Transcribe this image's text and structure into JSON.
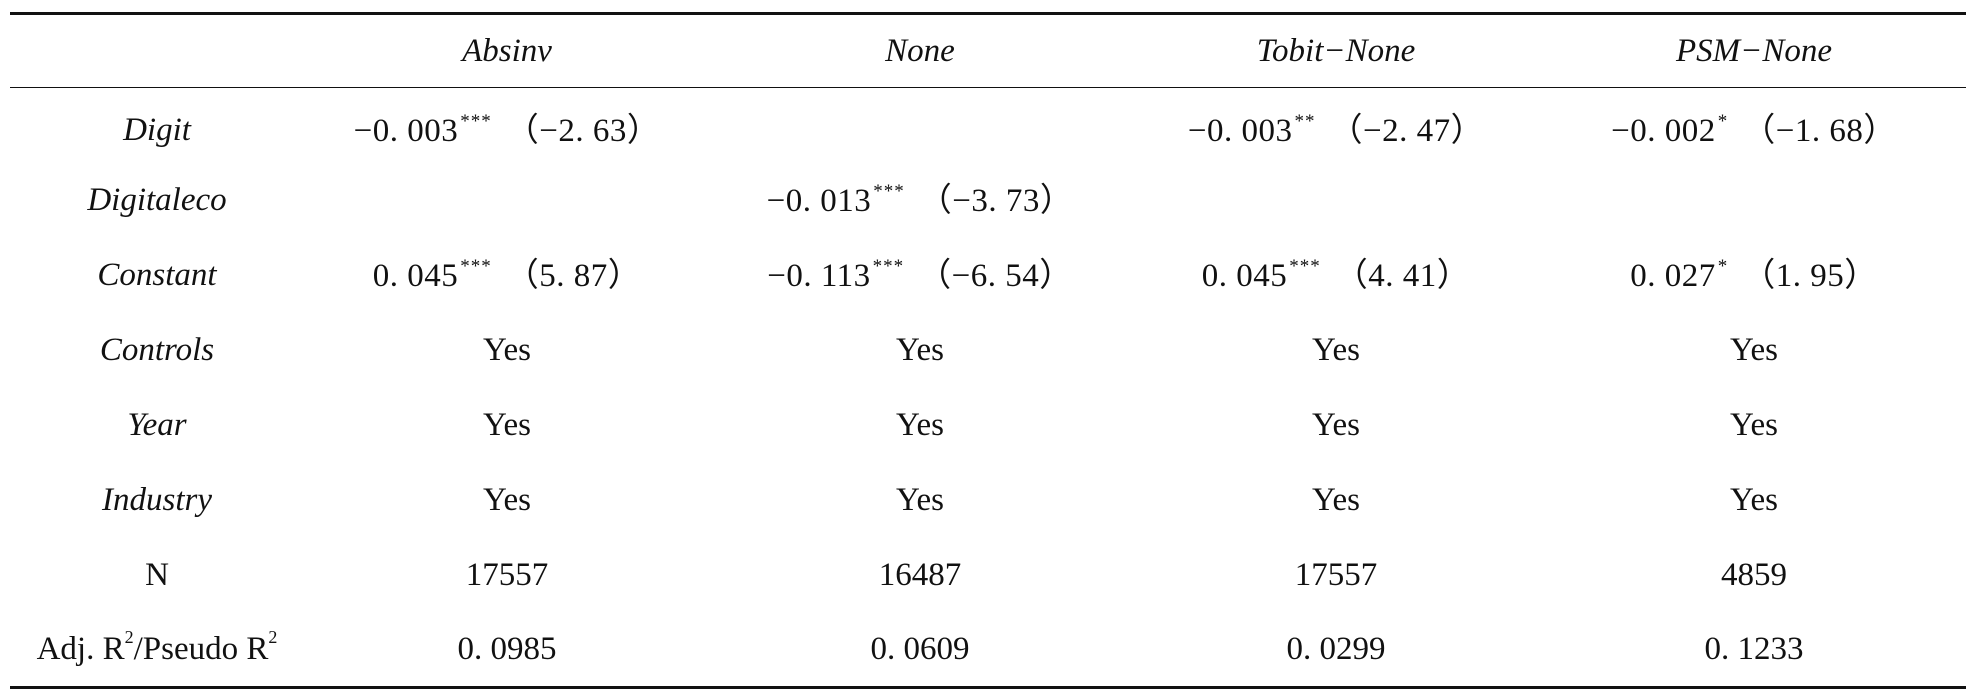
{
  "table": {
    "columns": [
      "",
      "Absinv",
      "None",
      "Tobit−None",
      "PSM−None"
    ],
    "rows": [
      {
        "label": "Digit",
        "label_italic": true,
        "cells": [
          {
            "coef": "−0. 003",
            "stars": "***",
            "t": "（−2. 63）"
          },
          {
            "coef": "",
            "stars": "",
            "t": ""
          },
          {
            "coef": "−0. 003",
            "stars": "**",
            "t": "（−2. 47）"
          },
          {
            "coef": "−0. 002",
            "stars": "*",
            "t": "（−1. 68）"
          }
        ]
      },
      {
        "label": "Digitaleco",
        "label_italic": true,
        "cells": [
          {
            "coef": "",
            "stars": "",
            "t": ""
          },
          {
            "coef": "−0. 013",
            "stars": "***",
            "t": "（−3. 73）"
          },
          {
            "coef": "",
            "stars": "",
            "t": ""
          },
          {
            "coef": "",
            "stars": "",
            "t": ""
          }
        ]
      },
      {
        "label": "Constant",
        "label_italic": true,
        "cells": [
          {
            "coef": "0. 045",
            "stars": "***",
            "t": "（5. 87）"
          },
          {
            "coef": "−0. 113",
            "stars": "***",
            "t": "（−6. 54）"
          },
          {
            "coef": "0. 045",
            "stars": "***",
            "t": "（4. 41）"
          },
          {
            "coef": "0. 027",
            "stars": "*",
            "t": "（1. 95）"
          }
        ]
      },
      {
        "label": "Controls",
        "label_italic": true,
        "cells": [
          "Yes",
          "Yes",
          "Yes",
          "Yes"
        ]
      },
      {
        "label": "Year",
        "label_italic": true,
        "cells": [
          "Yes",
          "Yes",
          "Yes",
          "Yes"
        ]
      },
      {
        "label": "Industry",
        "label_italic": true,
        "cells": [
          "Yes",
          "Yes",
          "Yes",
          "Yes"
        ]
      },
      {
        "label": "N",
        "label_italic": false,
        "cells": [
          "17557",
          "16487",
          "17557",
          "4859"
        ]
      },
      {
        "label_parts": [
          "Adj. R",
          "2",
          "/Pseudo R",
          "2"
        ],
        "label_italic": false,
        "cells": [
          "0. 0985",
          "0. 0609",
          "0. 0299",
          "0. 1233"
        ]
      }
    ]
  }
}
